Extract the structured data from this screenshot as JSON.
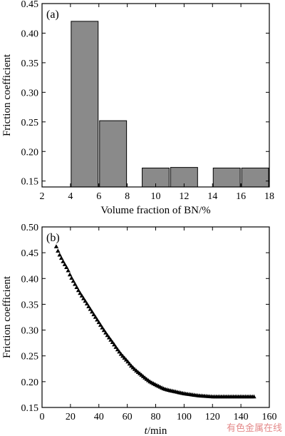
{
  "chart_data": [
    {
      "type": "bar",
      "panel_label": "(a)",
      "xlabel": "Volume fraction of BN/%",
      "ylabel": "Friction coefficient",
      "xlim": [
        2,
        18
      ],
      "ylim": [
        0.14,
        0.45
      ],
      "xticks": [
        2,
        4,
        6,
        8,
        10,
        12,
        14,
        16,
        18
      ],
      "yticks": [
        0.15,
        0.2,
        0.25,
        0.3,
        0.35,
        0.4,
        0.45
      ],
      "ytick_labels": [
        "0.15",
        "0.20",
        "0.25",
        "0.30",
        "0.35",
        "0.40",
        "0.45"
      ],
      "bars": [
        {
          "x0": 4.0,
          "x1": 6.0,
          "value": 0.42
        },
        {
          "x0": 6.0,
          "x1": 8.0,
          "value": 0.252
        },
        {
          "x0": 9.0,
          "x1": 11.0,
          "value": 0.172
        },
        {
          "x0": 11.0,
          "x1": 13.0,
          "value": 0.173
        },
        {
          "x0": 14.0,
          "x1": 16.0,
          "value": 0.172
        },
        {
          "x0": 16.0,
          "x1": 18.0,
          "value": 0.172
        }
      ],
      "bar_color": "#8a8a8a"
    },
    {
      "type": "scatter",
      "panel_label": "(b)",
      "xlabel_italic": "t",
      "xlabel_rest": "/min",
      "ylabel": "Friction coefficient",
      "xlim": [
        0,
        160
      ],
      "ylim": [
        0.15,
        0.5
      ],
      "xticks": [
        0,
        20,
        40,
        60,
        80,
        100,
        120,
        140,
        160
      ],
      "yticks": [
        0.15,
        0.2,
        0.25,
        0.3,
        0.35,
        0.4,
        0.45,
        0.5
      ],
      "ytick_labels": [
        "0.15",
        "0.20",
        "0.25",
        "0.30",
        "0.35",
        "0.40",
        "0.45",
        "0.50"
      ],
      "marker": "triangle",
      "x": [
        10,
        12,
        15,
        18,
        20,
        23,
        26,
        30,
        33,
        36,
        40,
        43,
        46,
        50,
        53,
        56,
        60,
        63,
        66,
        70,
        73,
        76,
        80,
        83,
        86,
        90,
        95,
        100,
        105,
        110,
        115,
        120,
        125,
        130,
        135,
        140,
        145,
        150
      ],
      "y": [
        0.462,
        0.448,
        0.432,
        0.418,
        0.405,
        0.39,
        0.375,
        0.358,
        0.345,
        0.332,
        0.315,
        0.302,
        0.29,
        0.275,
        0.263,
        0.252,
        0.24,
        0.23,
        0.222,
        0.213,
        0.206,
        0.2,
        0.194,
        0.19,
        0.186,
        0.183,
        0.18,
        0.177,
        0.175,
        0.173,
        0.172,
        0.171,
        0.171,
        0.171,
        0.171,
        0.171,
        0.171,
        0.171
      ]
    }
  ],
  "watermark": "有色金属在线"
}
